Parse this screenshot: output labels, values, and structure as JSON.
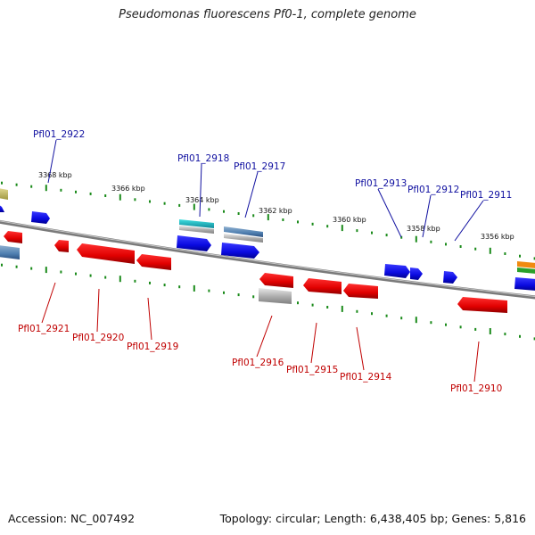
{
  "title": "Pseudomonas fluorescens Pf0-1, complete genome",
  "footer": {
    "accession": "Accession: NC_007492",
    "summary": "Topology: circular; Length: 6,438,405 bp; Genes: 5,816"
  },
  "colors": {
    "forward_gene": "#1010e0",
    "reverse_gene": "#e01010",
    "label_forward": "#1010a0",
    "label_reverse": "#c00000",
    "tick": "#1a8a1a",
    "backbone": "#888888"
  },
  "scale_labels": [
    "3368 kbp",
    "3366 kbp",
    "3364 kbp",
    "3362 kbp",
    "3360 kbp",
    "3358 kbp",
    "3356 kbp"
  ],
  "genes_top": [
    "Pfl01_2922",
    "Pfl01_2918",
    "Pfl01_2917",
    "Pfl01_2913",
    "Pfl01_2912",
    "Pfl01_2911"
  ],
  "genes_bottom": [
    "Pfl01_2921",
    "Pfl01_2920",
    "Pfl01_2919",
    "Pfl01_2916",
    "Pfl01_2915",
    "Pfl01_2914",
    "Pfl01_2910"
  ]
}
